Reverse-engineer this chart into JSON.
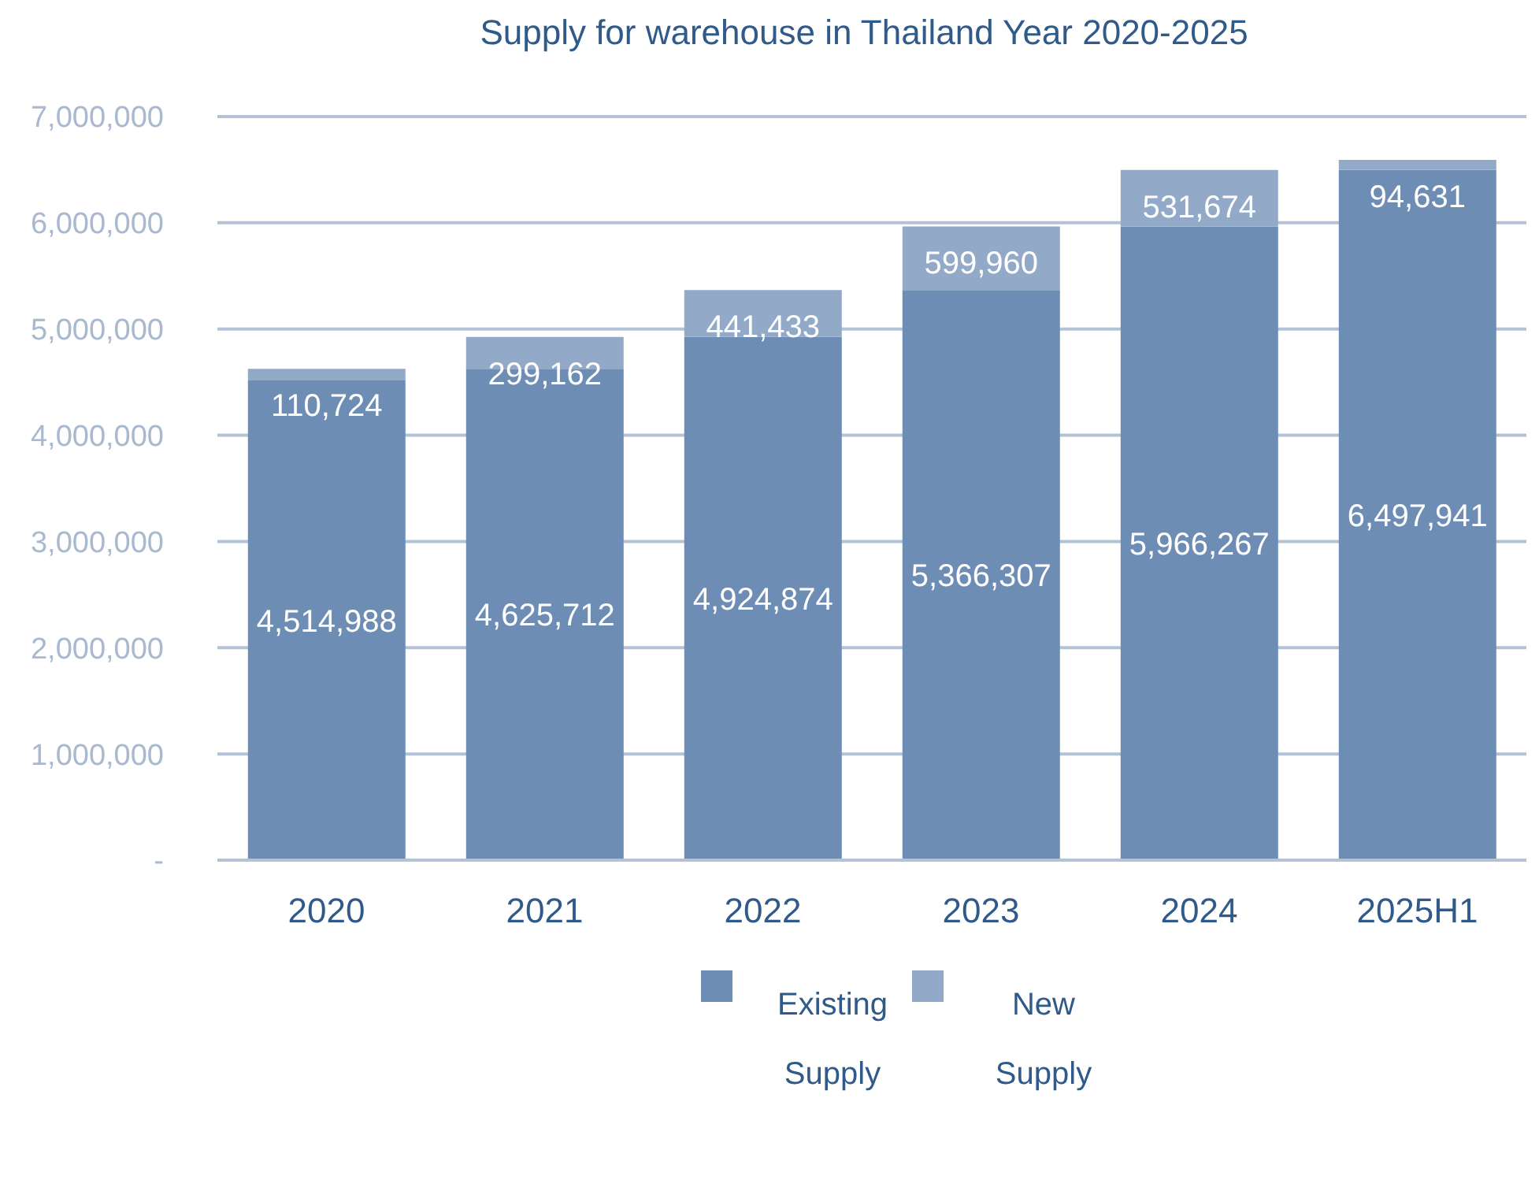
{
  "chart_data": {
    "type": "bar",
    "title": "Supply for warehouse in Thailand Year 2020-2025",
    "categories": [
      "2020",
      "2021",
      "2022",
      "2023",
      "2024",
      "2025H1"
    ],
    "stacked": true,
    "data_labels": true,
    "grid": "y",
    "legend": "bottom",
    "series": [
      {
        "name": "Existing Supply",
        "color": "#6e8db5",
        "values": [
          4514988,
          4625712,
          4924874,
          5366307,
          5966267,
          6497941
        ],
        "value_labels": [
          "4,514,988",
          "4,625,712",
          "4,924,874",
          "5,366,307",
          "5,966,267",
          "6,497,941"
        ]
      },
      {
        "name": "New Supply",
        "color": "#93a9c8",
        "values": [
          110724,
          299162,
          441433,
          599960,
          531674,
          94631
        ],
        "value_labels": [
          "110,724",
          "299,162",
          "441,433",
          "599,960",
          "531,674",
          "94,631"
        ]
      }
    ],
    "ylim": [
      0,
      7000000
    ],
    "yticks": [
      {
        "value": 0,
        "label": "-"
      },
      {
        "value": 1000000,
        "label": "1,000,000"
      },
      {
        "value": 2000000,
        "label": "2,000,000"
      },
      {
        "value": 3000000,
        "label": "3,000,000"
      },
      {
        "value": 4000000,
        "label": "4,000,000"
      },
      {
        "value": 5000000,
        "label": "5,000,000"
      },
      {
        "value": 6000000,
        "label": "6,000,000"
      },
      {
        "value": 7000000,
        "label": "7,000,000"
      }
    ]
  }
}
